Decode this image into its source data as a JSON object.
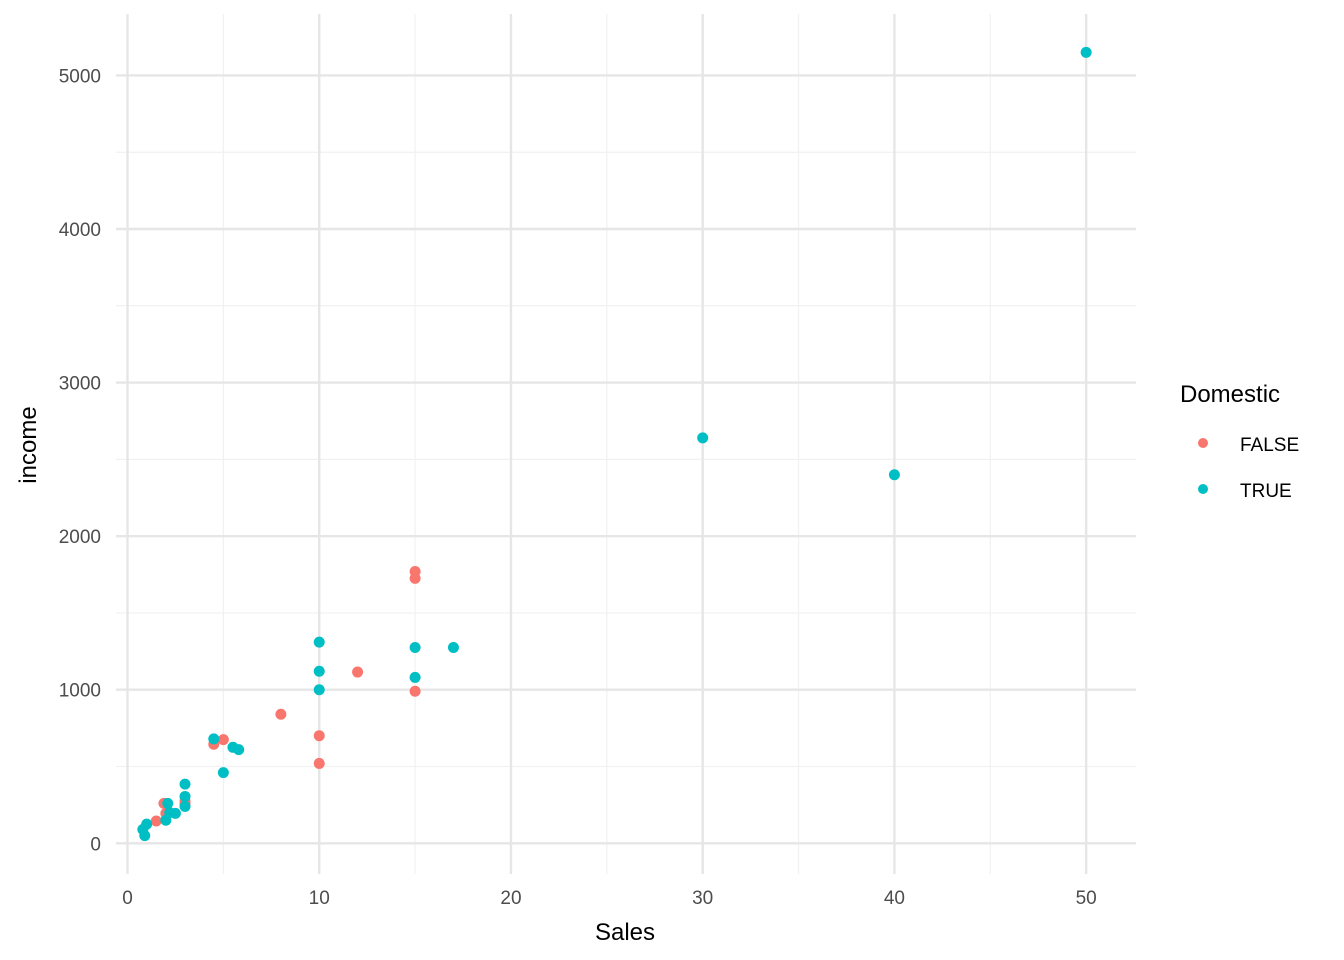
{
  "chart_data": {
    "type": "scatter",
    "title": "",
    "xlabel": "Sales",
    "ylabel": "income",
    "xlim": [
      -0.6,
      52.6
    ],
    "ylim": [
      -200,
      5400
    ],
    "x_ticks": [
      0,
      10,
      20,
      30,
      40,
      50
    ],
    "y_ticks": [
      0,
      1000,
      2000,
      3000,
      4000,
      5000
    ],
    "x_tick_labels": [
      "0",
      "10",
      "20",
      "30",
      "40",
      "50"
    ],
    "y_tick_labels": [
      "0",
      "1000",
      "2000",
      "3000",
      "4000",
      "5000"
    ],
    "grid": true,
    "legend": {
      "title": "Domestic",
      "placement": "right",
      "entries": [
        {
          "label": "FALSE",
          "color": "#F8766D"
        },
        {
          "label": "TRUE",
          "color": "#00BFC4"
        }
      ]
    },
    "series": [
      {
        "name": "FALSE",
        "color": "#F8766D",
        "points": [
          [
            15,
            1770
          ],
          [
            15,
            1725
          ],
          [
            12,
            1115
          ],
          [
            15,
            990
          ],
          [
            8,
            840
          ],
          [
            10,
            700
          ],
          [
            10,
            520
          ],
          [
            5,
            675
          ],
          [
            4.5,
            645
          ],
          [
            3,
            275
          ],
          [
            3,
            260
          ],
          [
            1.9,
            260
          ],
          [
            2,
            195
          ],
          [
            2.1,
            210
          ],
          [
            1.5,
            145
          ]
        ]
      },
      {
        "name": "TRUE",
        "color": "#00BFC4",
        "points": [
          [
            50,
            5150
          ],
          [
            30,
            2640
          ],
          [
            40,
            2400
          ],
          [
            10,
            1310
          ],
          [
            10,
            1120
          ],
          [
            10,
            1000
          ],
          [
            15,
            1275
          ],
          [
            17,
            1275
          ],
          [
            15,
            1080
          ],
          [
            4.5,
            680
          ],
          [
            5.5,
            625
          ],
          [
            5.8,
            610
          ],
          [
            5,
            460
          ],
          [
            3,
            385
          ],
          [
            3,
            305
          ],
          [
            3,
            240
          ],
          [
            2.1,
            260
          ],
          [
            2.5,
            195
          ],
          [
            2.2,
            200
          ],
          [
            2,
            150
          ],
          [
            1,
            125
          ],
          [
            0.8,
            90
          ],
          [
            0.9,
            50
          ]
        ]
      }
    ]
  }
}
